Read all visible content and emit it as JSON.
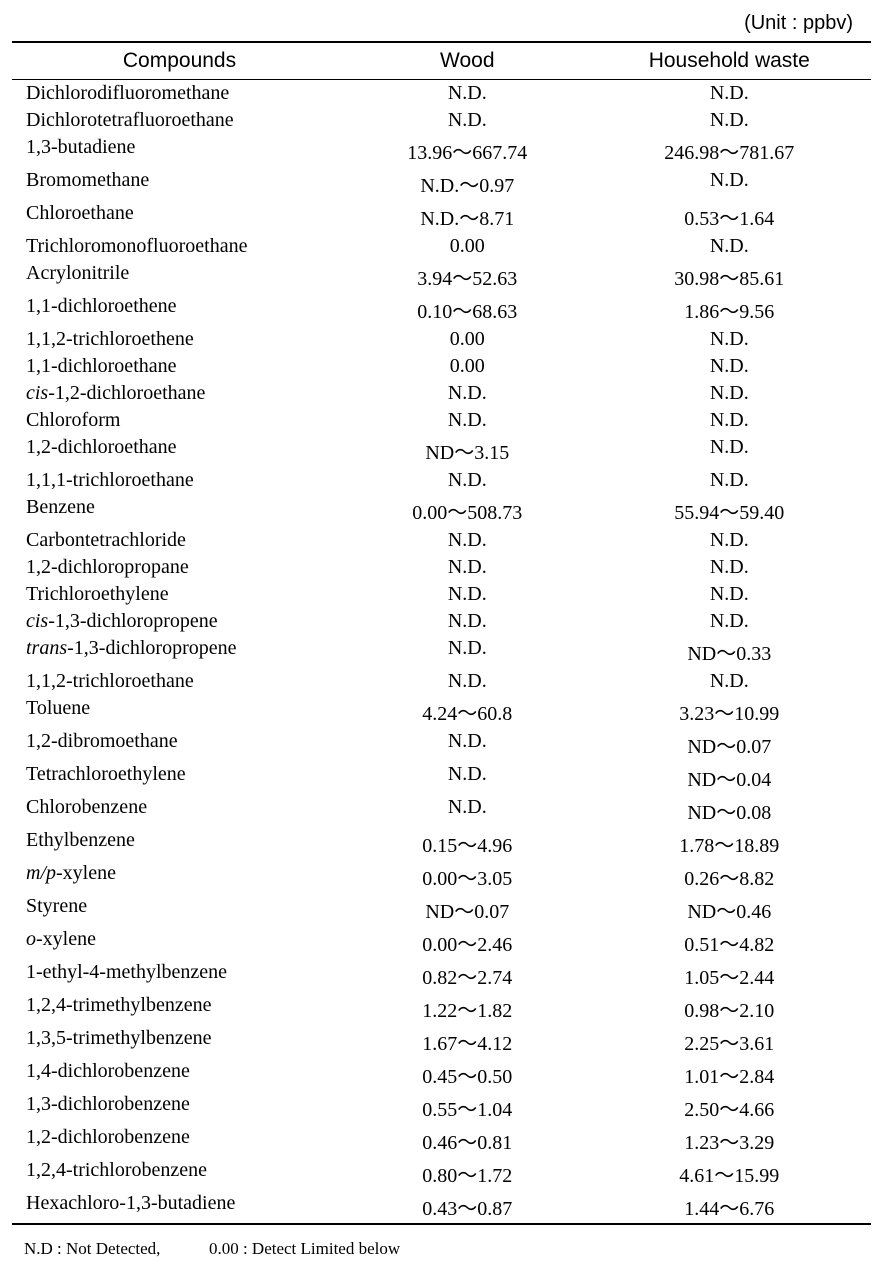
{
  "unit_label": "(Unit : ppbv)",
  "table": {
    "columns": [
      "Compounds",
      "Wood",
      "Household waste"
    ],
    "rows": [
      {
        "compound": "Dichlorodifluoromethane",
        "wood": "N.D.",
        "household": "N.D."
      },
      {
        "compound": "Dichlorotetrafluoroethane",
        "wood": "N.D.",
        "household": "N.D."
      },
      {
        "compound": "1,3-butadiene",
        "wood": "13.96～667.74",
        "household": "246.98～781.67"
      },
      {
        "compound": "Bromomethane",
        "wood": "N.D.～0.97",
        "household": "N.D."
      },
      {
        "compound": "Chloroethane",
        "wood": "N.D.～8.71",
        "household": "0.53～1.64"
      },
      {
        "compound": "Trichloromonofluoroethane",
        "wood": "0.00",
        "household": "N.D."
      },
      {
        "compound": "Acrylonitrile",
        "wood": "3.94～52.63",
        "household": "30.98～85.61"
      },
      {
        "compound": "1,1-dichloroethene",
        "wood": "0.10～68.63",
        "household": "1.86～9.56"
      },
      {
        "compound": "1,1,2-trichloroethene",
        "wood": "0.00",
        "household": "N.D."
      },
      {
        "compound": "1,1-dichloroethane",
        "wood": "0.00",
        "household": "N.D."
      },
      {
        "compound_prefix": "cis",
        "compound_suffix": "-1,2-dichloroethane",
        "wood": "N.D.",
        "household": "N.D."
      },
      {
        "compound": "Chloroform",
        "wood": "N.D.",
        "household": "N.D."
      },
      {
        "compound": "1,2-dichloroethane",
        "wood": "ND～3.15",
        "household": "N.D."
      },
      {
        "compound": "1,1,1-trichloroethane",
        "wood": "N.D.",
        "household": "N.D."
      },
      {
        "compound": "Benzene",
        "wood": "0.00～508.73",
        "household": "55.94～59.40"
      },
      {
        "compound": "Carbontetrachloride",
        "wood": "N.D.",
        "household": "N.D."
      },
      {
        "compound": "1,2-dichloropropane",
        "wood": "N.D.",
        "household": "N.D."
      },
      {
        "compound": "Trichloroethylene",
        "wood": "N.D.",
        "household": "N.D."
      },
      {
        "compound_prefix": "cis",
        "compound_suffix": "-1,3-dichloropropene",
        "wood": "N.D.",
        "household": "N.D."
      },
      {
        "compound_prefix": "trans",
        "compound_suffix": "-1,3-dichloropropene",
        "wood": "N.D.",
        "household": "ND～0.33"
      },
      {
        "compound": "1,1,2-trichloroethane",
        "wood": "N.D.",
        "household": "N.D."
      },
      {
        "compound": "Toluene",
        "wood": "4.24～60.8",
        "household": "3.23～10.99"
      },
      {
        "compound": "1,2-dibromoethane",
        "wood": "N.D.",
        "household": "ND～0.07"
      },
      {
        "compound": "Tetrachloroethylene",
        "wood": "N.D.",
        "household": "ND～0.04"
      },
      {
        "compound": "Chlorobenzene",
        "wood": "N.D.",
        "household": "ND～0.08"
      },
      {
        "compound": "Ethylbenzene",
        "wood": "0.15～4.96",
        "household": "1.78～18.89"
      },
      {
        "compound_prefix": "m/p",
        "compound_suffix": "-xylene",
        "wood": "0.00～3.05",
        "household": "0.26～8.82"
      },
      {
        "compound": "Styrene",
        "wood": "ND～0.07",
        "household": "ND～0.46"
      },
      {
        "compound_prefix": "o",
        "compound_suffix": "-xylene",
        "wood": "0.00～2.46",
        "household": "0.51～4.82"
      },
      {
        "compound": "1-ethyl-4-methylbenzene",
        "wood": "0.82～2.74",
        "household": "1.05～2.44"
      },
      {
        "compound": "1,2,4-trimethylbenzene",
        "wood": "1.22～1.82",
        "household": "0.98～2.10"
      },
      {
        "compound": "1,3,5-trimethylbenzene",
        "wood": "1.67～4.12",
        "household": "2.25～3.61"
      },
      {
        "compound": "1,4-dichlorobenzene",
        "wood": "0.45～0.50",
        "household": "1.01～2.84"
      },
      {
        "compound": "1,3-dichlorobenzene",
        "wood": "0.55～1.04",
        "household": "2.50～4.66"
      },
      {
        "compound": "1,2-dichlorobenzene",
        "wood": "0.46～0.81",
        "household": "1.23～3.29"
      },
      {
        "compound": "1,2,4-trichlorobenzene",
        "wood": "0.80～1.72",
        "household": "4.61～15.99"
      },
      {
        "compound": "Hexachloro-1,3-butadiene",
        "wood": "0.43～0.87",
        "household": "1.44～6.76"
      }
    ]
  },
  "footnote": {
    "nd": "N.D : Not Detected,",
    "zero": "0.00 : Detect Limited below"
  },
  "styling": {
    "body_bg": "#ffffff",
    "text_color": "#000000",
    "border_color": "#000000",
    "header_font": "Arial",
    "body_font": "Georgia",
    "header_fontsize": 21,
    "cell_fontsize": 20,
    "unit_fontsize": 20,
    "footnote_fontsize": 17,
    "col_widths_pct": [
      39,
      28,
      33
    ]
  }
}
